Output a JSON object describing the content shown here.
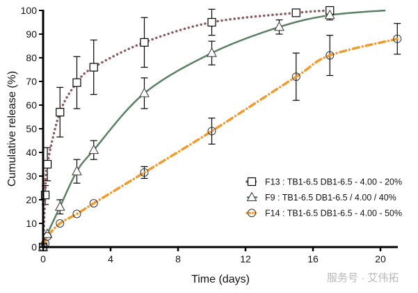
{
  "chart_data": {
    "type": "line",
    "title": "",
    "xlabel": "Time (days)",
    "ylabel": "Cumulative release (%)",
    "xlim": [
      0,
      21
    ],
    "ylim": [
      0,
      100
    ],
    "xticks": [
      0,
      4,
      8,
      12,
      16,
      20
    ],
    "yticks": [
      0,
      10,
      20,
      30,
      40,
      50,
      60,
      70,
      80,
      90,
      100
    ],
    "grid": false,
    "legend_position": "bottom-right",
    "series": [
      {
        "name": "F13 : TB1-6.5 DB1-6.5 - 4.00 - 20%",
        "color": "#8a5a5e",
        "marker": "square",
        "line": "dotted",
        "x": [
          0,
          0.125,
          0.25,
          1,
          2,
          3,
          6,
          10,
          15,
          17
        ],
        "y": [
          0,
          22,
          35,
          57,
          69.5,
          76,
          86.5,
          95,
          99,
          100
        ],
        "err": [
          0,
          4,
          7,
          10.5,
          11,
          11.5,
          10.5,
          5.5,
          1.5,
          0
        ]
      },
      {
        "name": "F9 : TB1-6.5 DB1-6.5 / 4.00 / 40%",
        "color": "#5a8062",
        "marker": "triangle",
        "line": "solid",
        "x": [
          0,
          0.25,
          1,
          2,
          3,
          6,
          10,
          14,
          17,
          20.3
        ],
        "y": [
          0,
          5.5,
          17,
          32,
          41,
          65,
          82,
          93,
          98,
          100
        ],
        "err": [
          0,
          0,
          3,
          5,
          4,
          6.5,
          5,
          3,
          2,
          0
        ],
        "markers_hidden_last": true
      },
      {
        "name": "F14 : TB1-6.5 DB1-6.5 - 4.00 - 50%",
        "color": "#f39a2c",
        "marker": "circle",
        "line": "dashdot",
        "x": [
          0,
          0.125,
          0.25,
          1,
          2,
          3,
          6,
          10,
          15,
          17,
          21
        ],
        "y": [
          0,
          1.5,
          4.5,
          10,
          14,
          18.5,
          31.5,
          49,
          72,
          81,
          88
        ],
        "err": [
          0,
          0,
          0,
          0,
          0,
          0,
          2.5,
          5.5,
          10,
          8.5,
          6.5
        ]
      }
    ]
  },
  "watermark": "服务号 · 艾伟拓"
}
